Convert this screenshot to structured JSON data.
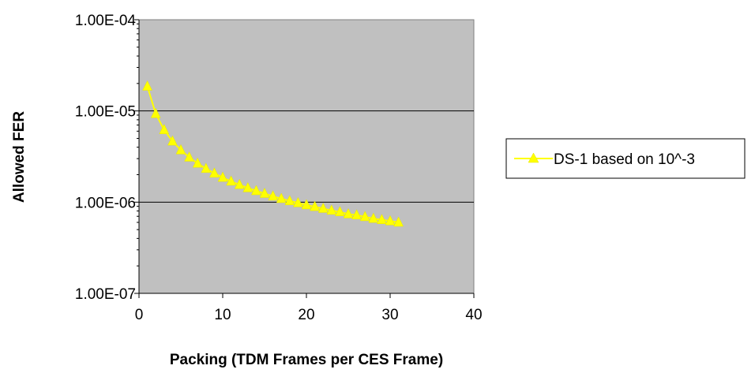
{
  "chart_data": {
    "type": "line",
    "xlabel": "Packing (TDM Frames per CES Frame)",
    "ylabel": "Allowed FER",
    "xlim": [
      0,
      40
    ],
    "ylim": [
      1e-07,
      0.0001
    ],
    "y_scale": "log",
    "x_ticks": [
      0,
      10,
      20,
      30,
      40
    ],
    "x_tick_labels": [
      "0",
      "10",
      "20",
      "30",
      "40"
    ],
    "y_ticks": [
      1e-07,
      1e-06,
      1e-05,
      0.0001
    ],
    "y_tick_labels": [
      "1.00E-07",
      "1.00E-06",
      "1.00E-05",
      "1.00E-04"
    ],
    "grid": "horizontal major gridlines",
    "plot_background": "#c0c0c0",
    "legend_position": "right",
    "series": [
      {
        "name": "DS-1 based on 10^-3",
        "color": "#ffff00",
        "marker": "triangle",
        "x": [
          1,
          2,
          3,
          4,
          5,
          6,
          7,
          8,
          9,
          10,
          11,
          12,
          13,
          14,
          15,
          16,
          17,
          18,
          19,
          20,
          21,
          22,
          23,
          24,
          25,
          26,
          27,
          28,
          29,
          30,
          31
        ],
        "y": [
          1.86e-05,
          9.3e-06,
          6.2e-06,
          4.65e-06,
          3.72e-06,
          3.1e-06,
          2.66e-06,
          2.33e-06,
          2.07e-06,
          1.86e-06,
          1.69e-06,
          1.55e-06,
          1.43e-06,
          1.33e-06,
          1.24e-06,
          1.16e-06,
          1.09e-06,
          1.03e-06,
          9.8e-07,
          9.3e-07,
          8.9e-07,
          8.5e-07,
          8.1e-07,
          7.8e-07,
          7.4e-07,
          7.2e-07,
          6.9e-07,
          6.6e-07,
          6.4e-07,
          6.2e-07,
          6e-07
        ]
      }
    ]
  }
}
